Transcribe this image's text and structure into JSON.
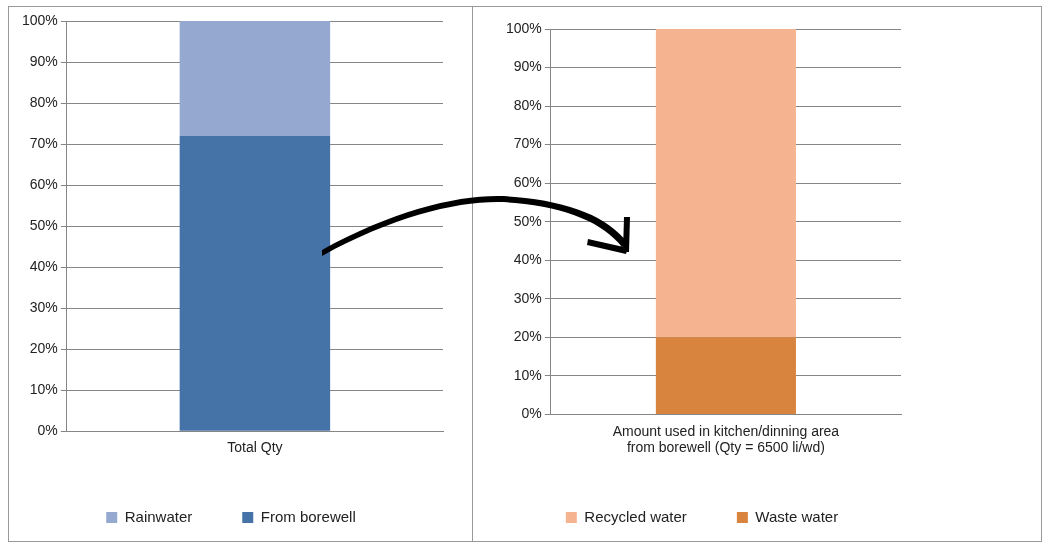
{
  "chart_data": [
    {
      "type": "bar",
      "stacked": true,
      "categories": [
        "Total Qty"
      ],
      "series": [
        {
          "name": "From borewell",
          "color": "#4572a7",
          "values": [
            72
          ]
        },
        {
          "name": "Rainwater",
          "color": "#95a9d0",
          "values": [
            28
          ]
        }
      ],
      "ylim": [
        0,
        100
      ],
      "yticks": [
        {
          "value": 0,
          "label": "0%"
        },
        {
          "value": 10,
          "label": "10%"
        },
        {
          "value": 20,
          "label": "20%"
        },
        {
          "value": 30,
          "label": "30%"
        },
        {
          "value": 40,
          "label": "40%"
        },
        {
          "value": 50,
          "label": "50%"
        },
        {
          "value": 60,
          "label": "60%"
        },
        {
          "value": 70,
          "label": "70%"
        },
        {
          "value": 80,
          "label": "80%"
        },
        {
          "value": 90,
          "label": "90%"
        },
        {
          "value": 100,
          "label": "100%"
        }
      ],
      "grid": "y",
      "legend": "bottom"
    },
    {
      "type": "bar",
      "stacked": true,
      "categories": [
        "Amount used in kitchen/dinning area from borewell (Qty = 6500 li/wd)"
      ],
      "series": [
        {
          "name": "Waste water",
          "color": "#d9843e",
          "values": [
            20
          ]
        },
        {
          "name": "Recycled water",
          "color": "#f6b38f",
          "values": [
            80
          ]
        }
      ],
      "ylim": [
        0,
        100
      ],
      "yticks": [
        {
          "value": 0,
          "label": "0%"
        },
        {
          "value": 10,
          "label": "10%"
        },
        {
          "value": 20,
          "label": "20%"
        },
        {
          "value": 30,
          "label": "30%"
        },
        {
          "value": 40,
          "label": "40%"
        },
        {
          "value": 50,
          "label": "50%"
        },
        {
          "value": 60,
          "label": "60%"
        },
        {
          "value": 70,
          "label": "70%"
        },
        {
          "value": 80,
          "label": "80%"
        },
        {
          "value": 90,
          "label": "90%"
        },
        {
          "value": 100,
          "label": "100%"
        }
      ],
      "grid": "y",
      "legend": "bottom"
    }
  ]
}
